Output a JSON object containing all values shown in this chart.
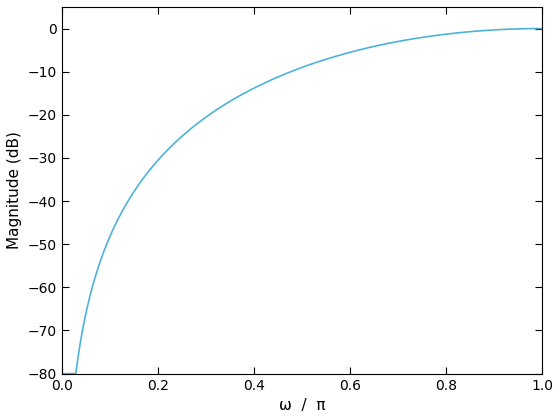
{
  "title": "",
  "xlabel": "ω  /  π",
  "ylabel": "Magnitude (dB)",
  "line_color": "#4eb3d9",
  "line_width": 1.2,
  "xlim": [
    0,
    1
  ],
  "ylim": [
    -80,
    5
  ],
  "xticks": [
    0,
    0.2,
    0.4,
    0.6,
    0.8,
    1.0
  ],
  "yticks": [
    0,
    -10,
    -20,
    -30,
    -40,
    -50,
    -60,
    -70,
    -80
  ],
  "background_color": "#ffffff",
  "axes_edge_color": "#000000",
  "tick_color": "#000000",
  "grid": false,
  "num_points": 4000,
  "exponent": 2.0
}
